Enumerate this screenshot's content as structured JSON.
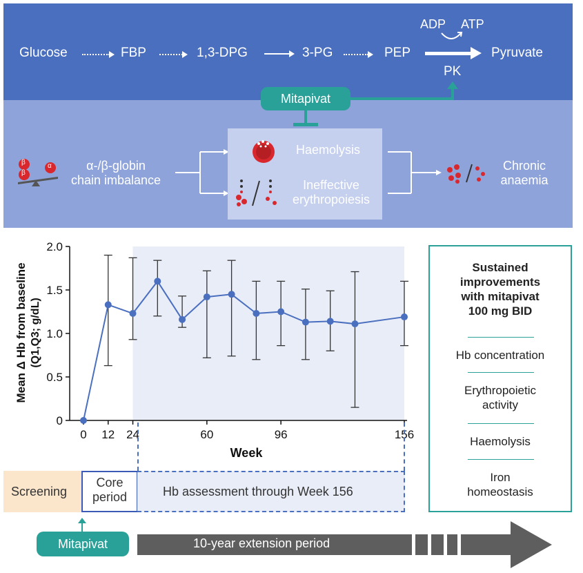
{
  "pathway": {
    "glucose": "Glucose",
    "fbp": "FBP",
    "dpg": "1,3-DPG",
    "pg": "3-PG",
    "pep": "PEP",
    "pyruvate": "Pyruvate",
    "adp": "ADP",
    "atp": "ATP",
    "pk": "PK"
  },
  "drug": {
    "name_top": "Mitapivat",
    "name_bottom": "Mitapivat"
  },
  "disease": {
    "beta1": "β",
    "beta2": "β",
    "alpha": "α",
    "imbalance_line1": "α-/β-globin",
    "imbalance_line2": "chain imbalance",
    "haemolysis": "Haemolysis",
    "ineffective_line1": "Ineffective",
    "ineffective_line2": "erythropoiesis",
    "chronic_line1": "Chronic",
    "chronic_line2": "anaemia"
  },
  "side_panel": {
    "title_lines": [
      "Sustained",
      "improvements",
      "with mitapivat",
      "100 mg BID"
    ],
    "items": [
      [
        "Hb concentration"
      ],
      [
        "Erythropoietic",
        "activity"
      ],
      [
        "Haemolysis"
      ],
      [
        "Iron",
        "homeostasis"
      ]
    ]
  },
  "timeline": {
    "screening": "Screening",
    "core_line1": "Core",
    "core_line2": "period",
    "assessment": "Hb assessment through Week 156",
    "extension": "10-year extension period"
  },
  "colors": {
    "pathway_band": "#4a6fbf",
    "disease_band": "#8ea3d9",
    "teal": "#2aa198",
    "series": "#4a6fbf",
    "shade": "#e9edf8"
  },
  "chart_data": {
    "type": "line",
    "title": "",
    "xlabel": "Week",
    "ylabel_line1": "Mean Δ Hb from baseline",
    "ylabel_line2": "(Q1,Q3; g/dL)",
    "xlim": [
      0,
      156
    ],
    "ylim": [
      0,
      2.0
    ],
    "x_ticks": [
      0,
      12,
      24,
      60,
      96,
      156
    ],
    "y_ticks": [
      "0",
      "0.5",
      "1.0",
      "1.5",
      "2.0"
    ],
    "y_tick_values": [
      0,
      0.5,
      1.0,
      1.5,
      2.0
    ],
    "shaded_x_range": [
      24,
      156
    ],
    "grid": false,
    "series": [
      {
        "x": [
          0,
          12,
          24,
          36,
          48,
          60,
          72,
          84,
          96,
          108,
          120,
          132,
          156
        ],
        "y": [
          0.0,
          1.33,
          1.23,
          1.6,
          1.16,
          1.42,
          1.45,
          1.23,
          1.25,
          1.13,
          1.14,
          1.11,
          1.19
        ],
        "q1": [
          0.0,
          0.63,
          0.93,
          1.2,
          1.07,
          0.72,
          0.74,
          0.7,
          0.86,
          0.7,
          0.8,
          0.15,
          0.86
        ],
        "q3": [
          0.0,
          1.9,
          1.87,
          1.84,
          1.43,
          1.72,
          1.84,
          1.6,
          1.6,
          1.51,
          1.49,
          1.71,
          1.6
        ]
      }
    ]
  }
}
